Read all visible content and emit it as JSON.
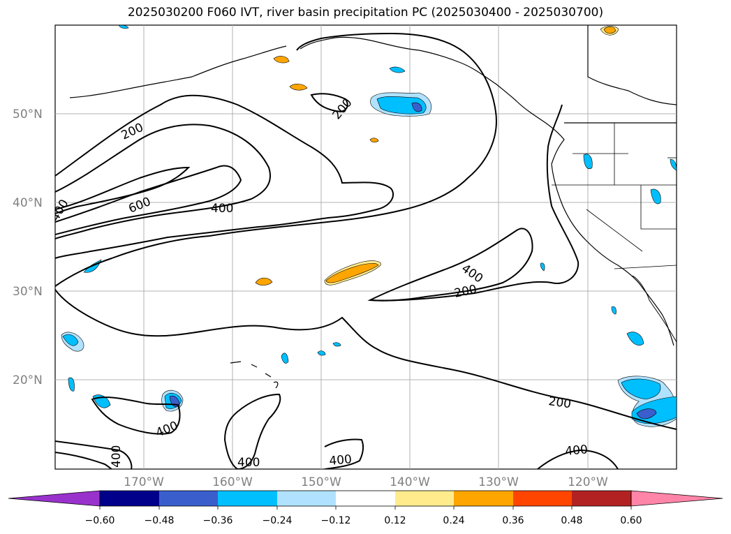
{
  "title": "2025030200 F060 IVT, river basin precipitation PC (2025030400 - 2025030700)",
  "map": {
    "lat_labels": [
      "50°N",
      "40°N",
      "30°N",
      "20°N"
    ],
    "lon_labels": [
      "170°W",
      "160°W",
      "150°W",
      "140°W",
      "130°W",
      "120°W"
    ],
    "ivt_contour_labels": [
      "200",
      "600",
      "400",
      "200",
      "400",
      "200",
      "400",
      "400",
      "400",
      "400",
      "200",
      "400",
      "400"
    ],
    "colors": {
      "land_coast": "#000000",
      "gridline": "#b0b0b0",
      "ivt_contour": "#000000"
    }
  },
  "colorbar": {
    "tick_labels": [
      "−0.60",
      "−0.48",
      "−0.36",
      "−0.24",
      "−0.12",
      "0.12",
      "0.24",
      "0.36",
      "0.48",
      "0.60"
    ],
    "colors": [
      "#9932cc",
      "#00008b",
      "#3a5fcd",
      "#00bfff",
      "#b0e2ff",
      "#ffffff",
      "#ffeb8c",
      "#ffa500",
      "#ff4500",
      "#b22222",
      "#ff85a8"
    ]
  }
}
